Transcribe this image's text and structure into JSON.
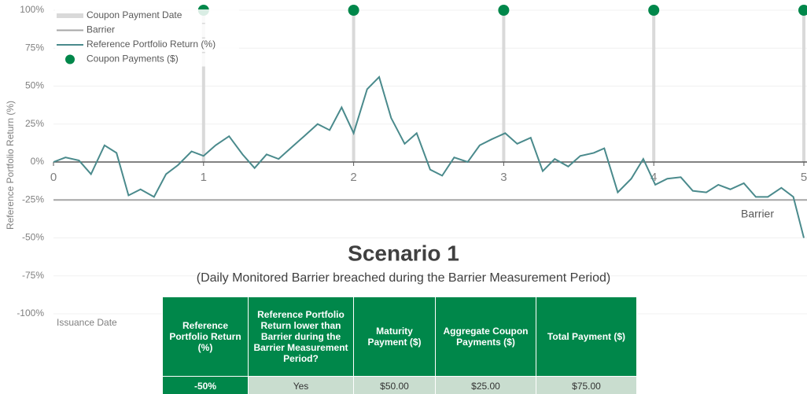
{
  "chart_data": {
    "type": "line",
    "title": "Scenario 1",
    "subtitle": "(Daily Monitored Barrier breached during the Barrier Measurement Period)",
    "y_label": "Reference Portfolio Return (%)",
    "annotations": [
      "Barrier",
      "Issuance Date"
    ],
    "xlim": [
      0,
      5
    ],
    "xticks": [
      0,
      1,
      2,
      3,
      4,
      5
    ],
    "ylim": [
      -100,
      100
    ],
    "yticks": [
      {
        "value": -100,
        "label": "-100%"
      },
      {
        "value": -75,
        "label": "-75%"
      },
      {
        "value": -50,
        "label": "-50%"
      },
      {
        "value": -25,
        "label": "-25%"
      },
      {
        "value": 0,
        "label": "0%"
      },
      {
        "value": 25,
        "label": "25%"
      },
      {
        "value": 50,
        "label": "50%"
      },
      {
        "value": 75,
        "label": "75%"
      },
      {
        "value": 100,
        "label": "100%"
      }
    ],
    "grid": true,
    "legend": "top-left",
    "series": [
      {
        "name": "Coupon Payment Date",
        "type": "vline",
        "color": "#d9d9d9",
        "x": [
          1,
          2,
          3,
          4,
          5
        ]
      },
      {
        "name": "Barrier",
        "type": "hline",
        "color": "#a6a6a6",
        "values": [
          -25
        ]
      },
      {
        "name": "Reference Portfolio Return (%)",
        "type": "line",
        "color": "#4a8a8c",
        "x": [
          0,
          0.08,
          0.17,
          0.25,
          0.34,
          0.42,
          0.5,
          0.58,
          0.67,
          0.75,
          0.83,
          0.92,
          1.0,
          1.08,
          1.17,
          1.26,
          1.34,
          1.42,
          1.5,
          1.59,
          1.67,
          1.76,
          1.84,
          1.92,
          2.0,
          2.09,
          2.17,
          2.25,
          2.34,
          2.42,
          2.51,
          2.59,
          2.67,
          2.76,
          2.84,
          2.92,
          3.01,
          3.09,
          3.18,
          3.26,
          3.34,
          3.43,
          3.51,
          3.6,
          3.67,
          3.76,
          3.85,
          3.93,
          4.01,
          4.09,
          4.18,
          4.26,
          4.35,
          4.43,
          4.51,
          4.6,
          4.68,
          4.76,
          4.85,
          4.93,
          5.0
        ],
        "values": [
          0,
          3,
          1,
          -8,
          11,
          6,
          -22,
          -18,
          -23,
          -8,
          -2,
          7,
          4,
          11,
          17,
          5,
          -4,
          5,
          2,
          10,
          17,
          25,
          21,
          36,
          19,
          48,
          56,
          29,
          12,
          19,
          -5,
          -9,
          3,
          0,
          11,
          15,
          19,
          12,
          16,
          -6,
          2,
          -3,
          4,
          6,
          9,
          -20,
          -11,
          2,
          -15,
          -11,
          -10,
          -19,
          -20,
          -15,
          -18,
          -14,
          -23,
          -23,
          -17,
          -23,
          -50
        ]
      },
      {
        "name": "Coupon Payments ($)",
        "type": "scatter",
        "color": "#00874a",
        "x": [
          1,
          2,
          3,
          4,
          5
        ],
        "values": [
          100,
          100,
          100,
          100,
          100
        ]
      }
    ]
  },
  "table": {
    "headers": [
      "Reference Portfolio Return (%)",
      "Reference Portfolio Return lower than Barrier during the Barrier Measurement Period?",
      "Maturity Payment ($)",
      "Aggregate Coupon Payments ($)",
      "Total Payment ($)"
    ],
    "rows": [
      [
        "-50%",
        "Yes",
        "$50.00",
        "$25.00",
        "$75.00"
      ]
    ]
  }
}
